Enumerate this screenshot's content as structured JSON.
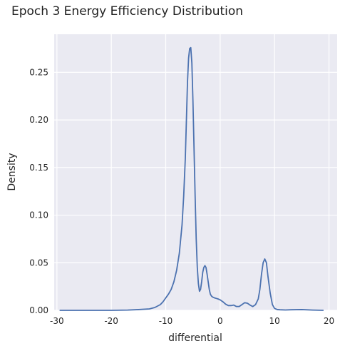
{
  "chart_data": {
    "type": "line",
    "title": "Epoch 3 Energy Efficiency Distribution",
    "xlabel": "differential",
    "ylabel": "Density",
    "xlim": [
      -30.5,
      21.5
    ],
    "ylim": [
      0,
      0.29
    ],
    "x_ticks": [
      -30,
      -20,
      -10,
      0,
      10,
      20
    ],
    "y_ticks": [
      0.0,
      0.05,
      0.1,
      0.15,
      0.2,
      0.25
    ],
    "x_tick_labels": [
      "-30",
      "-20",
      "-10",
      "0",
      "10",
      "20"
    ],
    "y_tick_labels": [
      "0.00",
      "0.05",
      "0.10",
      "0.15",
      "0.20",
      "0.25"
    ],
    "grid": true,
    "background": "#eaeaf2",
    "line_color": "#4c72b0",
    "series": [
      {
        "x": [
          -29.5,
          -25,
          -20,
          -17,
          -15,
          -13,
          -12,
          -11,
          -10.5,
          -10,
          -9.5,
          -9,
          -8.5,
          -8,
          -7.5,
          -7,
          -6.7,
          -6.4,
          -6.2,
          -6,
          -5.8,
          -5.6,
          -5.4,
          -5.2,
          -5,
          -4.8,
          -4.6,
          -4.4,
          -4.2,
          -4,
          -3.8,
          -3.6,
          -3.4,
          -3.2,
          -3,
          -2.8,
          -2.6,
          -2.4,
          -2.2,
          -2,
          -1.8,
          -1.6,
          -1.4,
          -1.2,
          -1,
          -0.7,
          -0.4,
          0,
          0.5,
          1,
          1.5,
          2,
          2.5,
          3,
          3.5,
          4,
          4.5,
          5,
          5.5,
          6,
          6.5,
          7,
          7.3,
          7.6,
          7.9,
          8.2,
          8.5,
          8.8,
          9.2,
          9.6,
          10,
          10.5,
          11,
          12,
          13,
          15,
          17,
          19
        ],
        "y": [
          0.0,
          0.0,
          0.0,
          0.0003,
          0.0008,
          0.0015,
          0.003,
          0.006,
          0.009,
          0.013,
          0.017,
          0.022,
          0.03,
          0.042,
          0.06,
          0.09,
          0.12,
          0.16,
          0.2,
          0.24,
          0.265,
          0.275,
          0.276,
          0.26,
          0.22,
          0.17,
          0.12,
          0.075,
          0.045,
          0.028,
          0.02,
          0.022,
          0.03,
          0.04,
          0.045,
          0.047,
          0.045,
          0.038,
          0.03,
          0.022,
          0.017,
          0.015,
          0.014,
          0.0135,
          0.013,
          0.0125,
          0.012,
          0.011,
          0.009,
          0.0065,
          0.005,
          0.005,
          0.0055,
          0.004,
          0.004,
          0.006,
          0.008,
          0.0075,
          0.0055,
          0.004,
          0.006,
          0.012,
          0.022,
          0.038,
          0.05,
          0.054,
          0.05,
          0.035,
          0.018,
          0.006,
          0.002,
          0.0008,
          0.0006,
          0.0004,
          0.0006,
          0.0008,
          0.0003,
          0.0
        ]
      }
    ]
  }
}
